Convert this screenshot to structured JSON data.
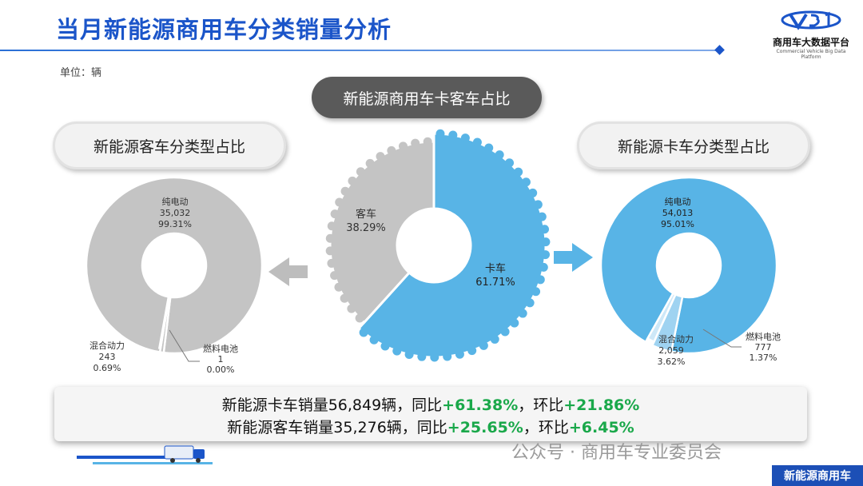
{
  "page": {
    "title": "当月新能源商用车分类销量分析",
    "unit": "单位：辆",
    "logo_name": "商用车大数据平台",
    "logo_en": "Commercial Vehicle Big Data Platform",
    "footer_tag": "新能源商用车",
    "watermark": "公众号 · 商用车专业委员会"
  },
  "colors": {
    "title_blue": "#1b55c9",
    "truck_blue": "#58b4e6",
    "bus_gray": "#c4c4c4",
    "growth_green": "#1aa84a"
  },
  "sections": {
    "center_title": "新能源商用车卡客车占比",
    "bus_title": "新能源客车分类型占比",
    "truck_title": "新能源卡车分类型占比"
  },
  "summary": {
    "truck": {
      "prefix": "新能源卡车销量56,849辆，同比",
      "yoy": "+61.38%",
      "mid": "，环比",
      "mom": "+21.86%"
    },
    "bus": {
      "prefix": "新能源客车销量35,276辆，同比",
      "yoy": "+25.65%",
      "mid": "，环比",
      "mom": "+6.45%"
    }
  },
  "chart_data": [
    {
      "type": "pie",
      "title": "新能源商用车卡客车占比",
      "categories": [
        "卡车",
        "客车"
      ],
      "values": [
        61.71,
        38.29
      ],
      "labels": [
        {
          "name": "卡车",
          "pct": "61.71%"
        },
        {
          "name": "客车",
          "pct": "38.29%"
        }
      ]
    },
    {
      "type": "pie",
      "title": "新能源客车分类型占比",
      "categories": [
        "纯电动",
        "混合动力",
        "燃料电池"
      ],
      "values": [
        35032,
        243,
        1
      ],
      "labels": [
        {
          "name": "纯电动",
          "value": "35,032",
          "pct": "99.31%"
        },
        {
          "name": "混合动力",
          "value": "243",
          "pct": "0.69%"
        },
        {
          "name": "燃料电池",
          "value": "1",
          "pct": "0.00%"
        }
      ]
    },
    {
      "type": "pie",
      "title": "新能源卡车分类型占比",
      "categories": [
        "纯电动",
        "混合动力",
        "燃料电池"
      ],
      "values": [
        54013,
        2059,
        777
      ],
      "labels": [
        {
          "name": "纯电动",
          "value": "54,013",
          "pct": "95.01%"
        },
        {
          "name": "混合动力",
          "value": "2,059",
          "pct": "3.62%"
        },
        {
          "name": "燃料电池",
          "value": "777",
          "pct": "1.37%"
        }
      ]
    }
  ]
}
